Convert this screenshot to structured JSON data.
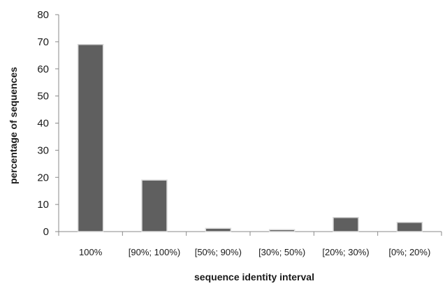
{
  "chart_data": {
    "type": "bar",
    "title": "",
    "xlabel": "sequence identity interval",
    "ylabel": "percentage of sequences",
    "categories": [
      "100%",
      "[90%; 100%)",
      "[50%; 90%)",
      "[30%; 50%)",
      "[20%; 30%)",
      "[0%; 20%)"
    ],
    "values": [
      69,
      19,
      1.2,
      0.7,
      5.2,
      3.4
    ],
    "ylim": [
      0,
      80
    ],
    "yticks": [
      0,
      10,
      20,
      30,
      40,
      50,
      60,
      70,
      80
    ],
    "grid": false,
    "legend": "none",
    "colors": {
      "bar": "#5f5f5f",
      "bar_edge": "#3f3f3f",
      "axis": "#8a8a8a",
      "text": "#1a1a1a"
    }
  }
}
